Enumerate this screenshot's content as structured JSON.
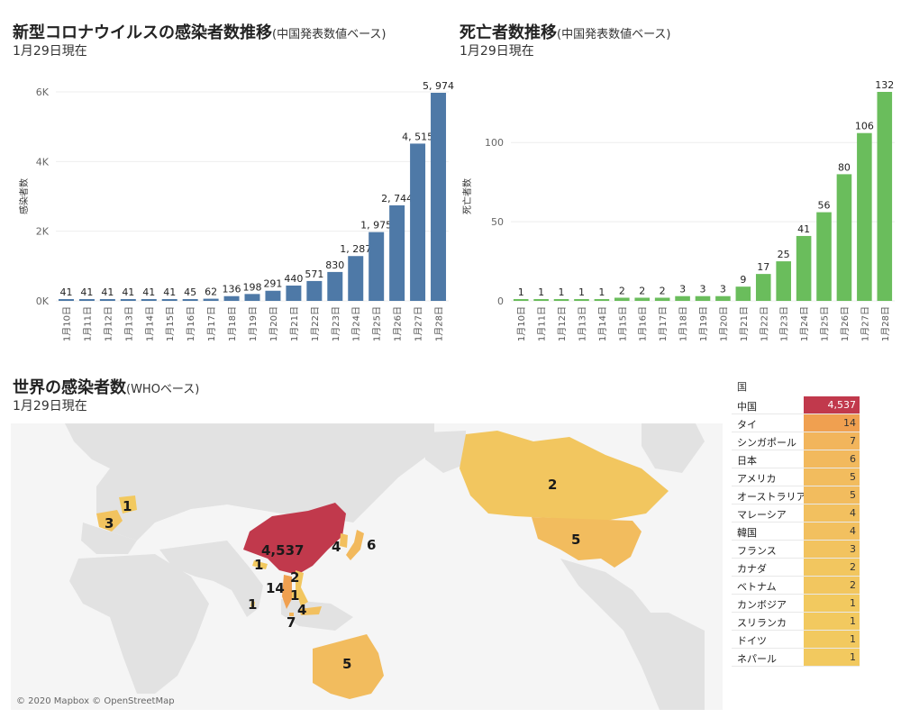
{
  "colors": {
    "cases_bar": "#4e79a7",
    "deaths_bar": "#6abd5c",
    "china_fill": "#c1394c",
    "high_fill": "#f0a050",
    "mid_fill": "#f2b55c",
    "low_fill": "#f2c45f",
    "land": "#e2e2e2",
    "ocean": "#f5f5f5"
  },
  "cases_panel": {
    "title": "新型コロナウイルスの感染者数推移",
    "title_suffix": "(中国発表数値ベース)",
    "subtitle": "1月29日現在"
  },
  "deaths_panel": {
    "title": "死亡者数推移",
    "title_suffix": "(中国発表数値ベース)",
    "subtitle": "1月29日現在"
  },
  "world_panel": {
    "title": "世界の感染者数",
    "title_suffix": "(WHOベース)",
    "subtitle": "1月29日現在",
    "copyright": "© 2020 Mapbox © OpenStreetMap",
    "map_labels": [
      "4,537",
      "14",
      "7",
      "6",
      "5",
      "5",
      "4",
      "4",
      "3",
      "2",
      "2",
      "1",
      "1",
      "1",
      "1"
    ]
  },
  "country_table": {
    "header": "国",
    "rows": [
      {
        "country": "中国",
        "value": "4,537",
        "fill": "#c1394c",
        "text_color": "#ffffff"
      },
      {
        "country": "タイ",
        "value": "14",
        "fill": "#f0a050",
        "text_color": "#333333"
      },
      {
        "country": "シンガポール",
        "value": "7",
        "fill": "#f2b55c",
        "text_color": "#333333"
      },
      {
        "country": "日本",
        "value": "6",
        "fill": "#f2b95d",
        "text_color": "#333333"
      },
      {
        "country": "アメリカ",
        "value": "5",
        "fill": "#f2bc5e",
        "text_color": "#333333"
      },
      {
        "country": "オーストラリア",
        "value": "5",
        "fill": "#f2bc5e",
        "text_color": "#333333"
      },
      {
        "country": "マレーシア",
        "value": "4",
        "fill": "#f2c05f",
        "text_color": "#333333"
      },
      {
        "country": "韓国",
        "value": "4",
        "fill": "#f2c05f",
        "text_color": "#333333"
      },
      {
        "country": "フランス",
        "value": "3",
        "fill": "#f2c35f",
        "text_color": "#333333"
      },
      {
        "country": "カナダ",
        "value": "2",
        "fill": "#f2c65f",
        "text_color": "#333333"
      },
      {
        "country": "ベトナム",
        "value": "2",
        "fill": "#f2c65f",
        "text_color": "#333333"
      },
      {
        "country": "カンボジア",
        "value": "1",
        "fill": "#f2c95f",
        "text_color": "#333333"
      },
      {
        "country": "スリランカ",
        "value": "1",
        "fill": "#f2c95f",
        "text_color": "#333333"
      },
      {
        "country": "ドイツ",
        "value": "1",
        "fill": "#f2c95f",
        "text_color": "#333333"
      },
      {
        "country": "ネパール",
        "value": "1",
        "fill": "#f2c95f",
        "text_color": "#333333"
      }
    ]
  },
  "chart_data": [
    {
      "type": "bar",
      "ylabel": "感染者数",
      "xlabel": "",
      "ylim": [
        0,
        6000
      ],
      "yticks": [
        0,
        2000,
        4000,
        6000
      ],
      "ytick_labels": [
        "0K",
        "2K",
        "4K",
        "6K"
      ],
      "grid": true,
      "categories": [
        "1月10日",
        "1月11日",
        "1月12日",
        "1月13日",
        "1月14日",
        "1月15日",
        "1月16日",
        "1月17日",
        "1月18日",
        "1月19日",
        "1月20日",
        "1月21日",
        "1月22日",
        "1月23日",
        "1月24日",
        "1月25日",
        "1月26日",
        "1月27日",
        "1月28日"
      ],
      "values": [
        41,
        41,
        41,
        41,
        41,
        41,
        45,
        62,
        136,
        198,
        291,
        440,
        571,
        830,
        1287,
        1975,
        2744,
        4515,
        5974
      ],
      "value_labels": [
        "41",
        "41",
        "41",
        "41",
        "41",
        "41",
        "45",
        "62",
        "136",
        "198",
        "291",
        "440",
        "571",
        "830",
        "1, 287",
        "1, 975",
        "2, 744",
        "4, 515",
        "5, 974"
      ]
    },
    {
      "type": "bar",
      "ylabel": "死亡者数",
      "xlabel": "",
      "ylim": [
        0,
        132
      ],
      "yticks": [
        0,
        50,
        100
      ],
      "ytick_labels": [
        "0",
        "50",
        "100"
      ],
      "grid": true,
      "categories": [
        "1月10日",
        "1月11日",
        "1月12日",
        "1月13日",
        "1月14日",
        "1月15日",
        "1月16日",
        "1月17日",
        "1月18日",
        "1月19日",
        "1月20日",
        "1月21日",
        "1月22日",
        "1月23日",
        "1月24日",
        "1月25日",
        "1月26日",
        "1月27日",
        "1月28日"
      ],
      "values": [
        1,
        1,
        1,
        1,
        1,
        2,
        2,
        2,
        3,
        3,
        3,
        9,
        17,
        25,
        41,
        56,
        80,
        106,
        132
      ],
      "value_labels": [
        "1",
        "1",
        "1",
        "1",
        "1",
        "2",
        "2",
        "2",
        "3",
        "3",
        "3",
        "9",
        "17",
        "25",
        "41",
        "56",
        "80",
        "106",
        "132"
      ]
    },
    {
      "type": "table",
      "columns": [
        "国",
        "感染者数"
      ],
      "categories": [
        "中国",
        "タイ",
        "シンガポール",
        "日本",
        "アメリカ",
        "オーストラリア",
        "マレーシア",
        "韓国",
        "フランス",
        "カナダ",
        "ベトナム",
        "カンボジア",
        "スリランカ",
        "ドイツ",
        "ネパール"
      ],
      "values": [
        4537,
        14,
        7,
        6,
        5,
        5,
        4,
        4,
        3,
        2,
        2,
        1,
        1,
        1,
        1
      ]
    }
  ]
}
